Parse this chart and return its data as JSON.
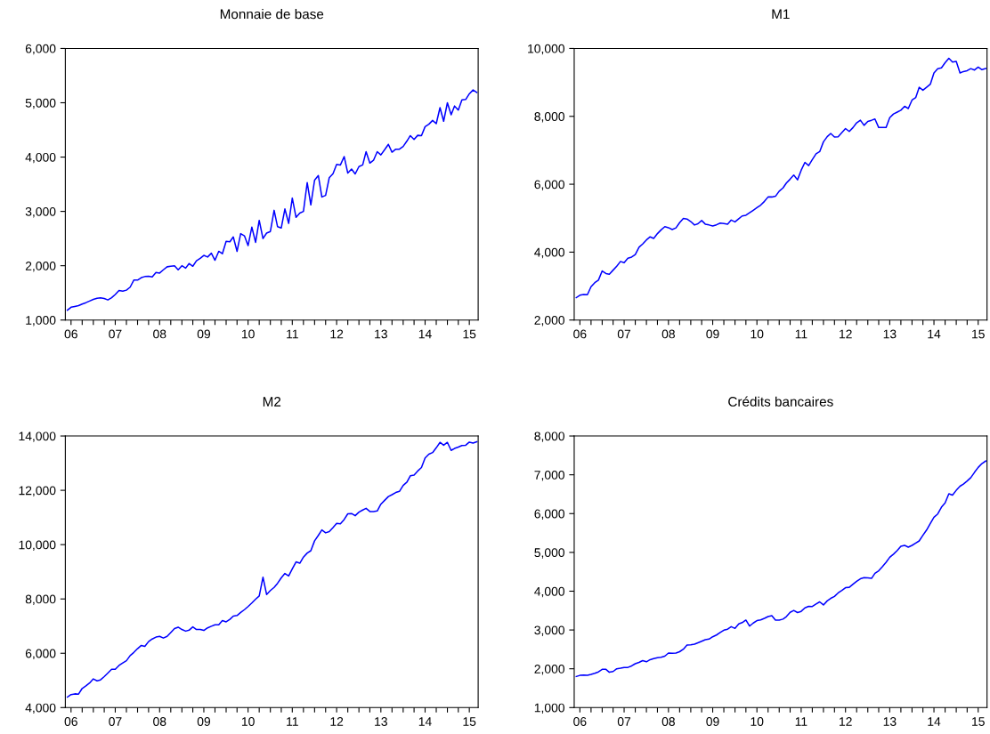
{
  "chart_data": [
    {
      "type": "line",
      "title": "Monnaie de base",
      "x": [
        "2006-06",
        "2006-07",
        "2006-08",
        "2006-09",
        "2006-10",
        "2006-11",
        "2006-12",
        "2007-01",
        "2007-02",
        "2007-03",
        "2007-04",
        "2007-05",
        "2007-06",
        "2007-07",
        "2007-08",
        "2007-09",
        "2007-10",
        "2007-11",
        "2007-12",
        "2008-01",
        "2008-02",
        "2008-03",
        "2008-04",
        "2008-05",
        "2008-06",
        "2008-07",
        "2008-08",
        "2008-09",
        "2008-10",
        "2008-11",
        "2008-12",
        "2009-01",
        "2009-02",
        "2009-03",
        "2009-04",
        "2009-05",
        "2009-06",
        "2009-07",
        "2009-08",
        "2009-09",
        "2009-10",
        "2009-11",
        "2009-12",
        "2010-01",
        "2010-02",
        "2010-03",
        "2010-04",
        "2010-05",
        "2010-06",
        "2010-07",
        "2010-08",
        "2010-09",
        "2010-10",
        "2010-11",
        "2010-12",
        "2011-01",
        "2011-02",
        "2011-03",
        "2011-04",
        "2011-05",
        "2011-06",
        "2011-07",
        "2011-08",
        "2011-09",
        "2011-10",
        "2011-11",
        "2011-12",
        "2012-01",
        "2012-02",
        "2012-03",
        "2012-04",
        "2012-05",
        "2012-06",
        "2012-07",
        "2012-08",
        "2012-09",
        "2012-10",
        "2012-11",
        "2012-12",
        "2013-01",
        "2013-02",
        "2013-03",
        "2013-04",
        "2013-05",
        "2013-06",
        "2013-07",
        "2013-08",
        "2013-09",
        "2013-10",
        "2013-11",
        "2013-12",
        "2014-01",
        "2014-02",
        "2014-03",
        "2014-04",
        "2014-05",
        "2014-06",
        "2014-07",
        "2014-08",
        "2014-09",
        "2014-10",
        "2014-11",
        "2014-12",
        "2015-01",
        "2015-02",
        "2015-03",
        "2015-04",
        "2015-05",
        "2015-06",
        "2015-07",
        "2015-08",
        "2015-09"
      ],
      "series": [
        {
          "color": "#0000ff",
          "values": [
            1180,
            1235,
            1250,
            1265,
            1295,
            1320,
            1350,
            1380,
            1400,
            1410,
            1395,
            1370,
            1410,
            1470,
            1545,
            1530,
            1550,
            1605,
            1735,
            1735,
            1780,
            1800,
            1805,
            1795,
            1875,
            1865,
            1925,
            1980,
            1990,
            2000,
            1925,
            2000,
            1955,
            2040,
            1990,
            2090,
            2135,
            2190,
            2160,
            2230,
            2100,
            2265,
            2220,
            2450,
            2440,
            2530,
            2265,
            2590,
            2550,
            2370,
            2710,
            2430,
            2835,
            2500,
            2600,
            2630,
            3020,
            2720,
            2695,
            3045,
            2780,
            3245,
            2890,
            2970,
            3000,
            3530,
            3120,
            3575,
            3660,
            3265,
            3295,
            3620,
            3695,
            3865,
            3855,
            4010,
            3705,
            3780,
            3690,
            3825,
            3855,
            4100,
            3890,
            3940,
            4100,
            4040,
            4135,
            4235,
            4090,
            4145,
            4145,
            4195,
            4295,
            4395,
            4325,
            4400,
            4395,
            4560,
            4605,
            4675,
            4615,
            4910,
            4660,
            5000,
            4780,
            4940,
            4865,
            5055,
            5060,
            5165,
            5235,
            5190
          ]
        }
      ],
      "xlim": [
        "2006-05-15",
        "2015-09-12"
      ],
      "xticks": [
        {
          "value": "2006-07",
          "label": "06"
        },
        {
          "value": "2006-10",
          "label": null
        },
        {
          "value": "2007-01",
          "label": null
        },
        {
          "value": "2007-04",
          "label": null
        },
        {
          "value": "2007-07",
          "label": "07"
        },
        {
          "value": "2007-10",
          "label": null
        },
        {
          "value": "2008-01",
          "label": null
        },
        {
          "value": "2008-04",
          "label": null
        },
        {
          "value": "2008-07",
          "label": "08"
        },
        {
          "value": "2008-10",
          "label": null
        },
        {
          "value": "2009-01",
          "label": null
        },
        {
          "value": "2009-04",
          "label": null
        },
        {
          "value": "2009-07",
          "label": "09"
        },
        {
          "value": "2009-10",
          "label": null
        },
        {
          "value": "2010-01",
          "label": null
        },
        {
          "value": "2010-04",
          "label": null
        },
        {
          "value": "2010-07",
          "label": "10"
        },
        {
          "value": "2010-10",
          "label": null
        },
        {
          "value": "2011-01",
          "label": null
        },
        {
          "value": "2011-04",
          "label": null
        },
        {
          "value": "2011-07",
          "label": "11"
        },
        {
          "value": "2011-10",
          "label": null
        },
        {
          "value": "2012-01",
          "label": null
        },
        {
          "value": "2012-04",
          "label": null
        },
        {
          "value": "2012-07",
          "label": "12"
        },
        {
          "value": "2012-10",
          "label": null
        },
        {
          "value": "2013-01",
          "label": null
        },
        {
          "value": "2013-04",
          "label": null
        },
        {
          "value": "2013-07",
          "label": "13"
        },
        {
          "value": "2013-10",
          "label": null
        },
        {
          "value": "2014-01",
          "label": null
        },
        {
          "value": "2014-04",
          "label": null
        },
        {
          "value": "2014-07",
          "label": "14"
        },
        {
          "value": "2014-10",
          "label": null
        },
        {
          "value": "2015-01",
          "label": null
        },
        {
          "value": "2015-04",
          "label": null
        },
        {
          "value": "2015-07",
          "label": "15"
        }
      ],
      "ylim": [
        1000,
        6000
      ],
      "yticks": [
        {
          "value": 1000,
          "label": "1,000"
        },
        {
          "value": 2000,
          "label": "2,000"
        },
        {
          "value": 3000,
          "label": "3,000"
        },
        {
          "value": 4000,
          "label": "4,000"
        },
        {
          "value": 5000,
          "label": "5,000"
        },
        {
          "value": 6000,
          "label": "6,000"
        }
      ]
    },
    {
      "type": "line",
      "title": "M1",
      "x": [
        "2006-06",
        "2006-07",
        "2006-08",
        "2006-09",
        "2006-10",
        "2006-11",
        "2006-12",
        "2007-01",
        "2007-02",
        "2007-03",
        "2007-04",
        "2007-05",
        "2007-06",
        "2007-07",
        "2007-08",
        "2007-09",
        "2007-10",
        "2007-11",
        "2007-12",
        "2008-01",
        "2008-02",
        "2008-03",
        "2008-04",
        "2008-05",
        "2008-06",
        "2008-07",
        "2008-08",
        "2008-09",
        "2008-10",
        "2008-11",
        "2008-12",
        "2009-01",
        "2009-02",
        "2009-03",
        "2009-04",
        "2009-05",
        "2009-06",
        "2009-07",
        "2009-08",
        "2009-09",
        "2009-10",
        "2009-11",
        "2009-12",
        "2010-01",
        "2010-02",
        "2010-03",
        "2010-04",
        "2010-05",
        "2010-06",
        "2010-07",
        "2010-08",
        "2010-09",
        "2010-10",
        "2010-11",
        "2010-12",
        "2011-01",
        "2011-02",
        "2011-03",
        "2011-04",
        "2011-05",
        "2011-06",
        "2011-07",
        "2011-08",
        "2011-09",
        "2011-10",
        "2011-11",
        "2011-12",
        "2012-01",
        "2012-02",
        "2012-03",
        "2012-04",
        "2012-05",
        "2012-06",
        "2012-07",
        "2012-08",
        "2012-09",
        "2012-10",
        "2012-11",
        "2012-12",
        "2013-01",
        "2013-02",
        "2013-03",
        "2013-04",
        "2013-05",
        "2013-06",
        "2013-07",
        "2013-08",
        "2013-09",
        "2013-10",
        "2013-11",
        "2013-12",
        "2014-01",
        "2014-02",
        "2014-03",
        "2014-04",
        "2014-05",
        "2014-06",
        "2014-07",
        "2014-08",
        "2014-09",
        "2014-10",
        "2014-11",
        "2014-12",
        "2015-01",
        "2015-02",
        "2015-03",
        "2015-04",
        "2015-05",
        "2015-06",
        "2015-07",
        "2015-08",
        "2015-09"
      ],
      "series": [
        {
          "color": "#0000ff",
          "values": [
            2660,
            2730,
            2755,
            2745,
            2980,
            3100,
            3175,
            3445,
            3370,
            3350,
            3470,
            3585,
            3725,
            3690,
            3820,
            3855,
            3930,
            4145,
            4240,
            4360,
            4450,
            4405,
            4545,
            4655,
            4750,
            4720,
            4665,
            4715,
            4870,
            4995,
            4975,
            4900,
            4800,
            4835,
            4930,
            4825,
            4800,
            4770,
            4805,
            4855,
            4845,
            4825,
            4945,
            4890,
            4985,
            5065,
            5085,
            5160,
            5235,
            5310,
            5385,
            5495,
            5625,
            5625,
            5645,
            5795,
            5890,
            6035,
            6150,
            6270,
            6130,
            6410,
            6645,
            6550,
            6725,
            6895,
            6960,
            7250,
            7400,
            7495,
            7390,
            7400,
            7520,
            7640,
            7555,
            7670,
            7810,
            7885,
            7735,
            7850,
            7885,
            7920,
            7670,
            7670,
            7670,
            7960,
            8070,
            8125,
            8180,
            8295,
            8230,
            8480,
            8555,
            8855,
            8770,
            8855,
            8945,
            9280,
            9405,
            9430,
            9580,
            9710,
            9600,
            9620,
            9280,
            9320,
            9345,
            9405,
            9365,
            9450,
            9375,
            9410
          ]
        }
      ],
      "xlim": [
        "2006-05-15",
        "2015-09-12"
      ],
      "xticks": [
        {
          "value": "2006-07",
          "label": "06"
        },
        {
          "value": "2006-10",
          "label": null
        },
        {
          "value": "2007-01",
          "label": null
        },
        {
          "value": "2007-04",
          "label": null
        },
        {
          "value": "2007-07",
          "label": "07"
        },
        {
          "value": "2007-10",
          "label": null
        },
        {
          "value": "2008-01",
          "label": null
        },
        {
          "value": "2008-04",
          "label": null
        },
        {
          "value": "2008-07",
          "label": "08"
        },
        {
          "value": "2008-10",
          "label": null
        },
        {
          "value": "2009-01",
          "label": null
        },
        {
          "value": "2009-04",
          "label": null
        },
        {
          "value": "2009-07",
          "label": "09"
        },
        {
          "value": "2009-10",
          "label": null
        },
        {
          "value": "2010-01",
          "label": null
        },
        {
          "value": "2010-04",
          "label": null
        },
        {
          "value": "2010-07",
          "label": "10"
        },
        {
          "value": "2010-10",
          "label": null
        },
        {
          "value": "2011-01",
          "label": null
        },
        {
          "value": "2011-04",
          "label": null
        },
        {
          "value": "2011-07",
          "label": "11"
        },
        {
          "value": "2011-10",
          "label": null
        },
        {
          "value": "2012-01",
          "label": null
        },
        {
          "value": "2012-04",
          "label": null
        },
        {
          "value": "2012-07",
          "label": "12"
        },
        {
          "value": "2012-10",
          "label": null
        },
        {
          "value": "2013-01",
          "label": null
        },
        {
          "value": "2013-04",
          "label": null
        },
        {
          "value": "2013-07",
          "label": "13"
        },
        {
          "value": "2013-10",
          "label": null
        },
        {
          "value": "2014-01",
          "label": null
        },
        {
          "value": "2014-04",
          "label": null
        },
        {
          "value": "2014-07",
          "label": "14"
        },
        {
          "value": "2014-10",
          "label": null
        },
        {
          "value": "2015-01",
          "label": null
        },
        {
          "value": "2015-04",
          "label": null
        },
        {
          "value": "2015-07",
          "label": "15"
        }
      ],
      "ylim": [
        2000,
        10000
      ],
      "yticks": [
        {
          "value": 2000,
          "label": "2,000"
        },
        {
          "value": 4000,
          "label": "4,000"
        },
        {
          "value": 6000,
          "label": "6,000"
        },
        {
          "value": 8000,
          "label": "8,000"
        },
        {
          "value": 10000,
          "label": "10,000"
        }
      ]
    },
    {
      "type": "line",
      "title": "M2",
      "x": [
        "2006-06",
        "2006-07",
        "2006-08",
        "2006-09",
        "2006-10",
        "2006-11",
        "2006-12",
        "2007-01",
        "2007-02",
        "2007-03",
        "2007-04",
        "2007-05",
        "2007-06",
        "2007-07",
        "2007-08",
        "2007-09",
        "2007-10",
        "2007-11",
        "2007-12",
        "2008-01",
        "2008-02",
        "2008-03",
        "2008-04",
        "2008-05",
        "2008-06",
        "2008-07",
        "2008-08",
        "2008-09",
        "2008-10",
        "2008-11",
        "2008-12",
        "2009-01",
        "2009-02",
        "2009-03",
        "2009-04",
        "2009-05",
        "2009-06",
        "2009-07",
        "2009-08",
        "2009-09",
        "2009-10",
        "2009-11",
        "2009-12",
        "2010-01",
        "2010-02",
        "2010-03",
        "2010-04",
        "2010-05",
        "2010-06",
        "2010-07",
        "2010-08",
        "2010-09",
        "2010-10",
        "2010-11",
        "2010-12",
        "2011-01",
        "2011-02",
        "2011-03",
        "2011-04",
        "2011-05",
        "2011-06",
        "2011-07",
        "2011-08",
        "2011-09",
        "2011-10",
        "2011-11",
        "2011-12",
        "2012-01",
        "2012-02",
        "2012-03",
        "2012-04",
        "2012-05",
        "2012-06",
        "2012-07",
        "2012-08",
        "2012-09",
        "2012-10",
        "2012-11",
        "2012-12",
        "2013-01",
        "2013-02",
        "2013-03",
        "2013-04",
        "2013-05",
        "2013-06",
        "2013-07",
        "2013-08",
        "2013-09",
        "2013-10",
        "2013-11",
        "2013-12",
        "2014-01",
        "2014-02",
        "2014-03",
        "2014-04",
        "2014-05",
        "2014-06",
        "2014-07",
        "2014-08",
        "2014-09",
        "2014-10",
        "2014-11",
        "2014-12",
        "2015-01",
        "2015-02",
        "2015-03",
        "2015-04",
        "2015-05",
        "2015-06",
        "2015-07",
        "2015-08",
        "2015-09"
      ],
      "series": [
        {
          "color": "#0000ff",
          "values": [
            4385,
            4480,
            4505,
            4495,
            4705,
            4800,
            4905,
            5055,
            4985,
            5020,
            5140,
            5270,
            5410,
            5410,
            5550,
            5645,
            5725,
            5915,
            6030,
            6170,
            6290,
            6255,
            6430,
            6525,
            6595,
            6620,
            6560,
            6620,
            6760,
            6910,
            6960,
            6875,
            6815,
            6850,
            6970,
            6875,
            6875,
            6840,
            6935,
            6995,
            7050,
            7050,
            7205,
            7155,
            7250,
            7370,
            7390,
            7500,
            7605,
            7720,
            7850,
            7990,
            8110,
            8800,
            8165,
            8310,
            8425,
            8575,
            8775,
            8940,
            8845,
            9105,
            9365,
            9315,
            9540,
            9690,
            9775,
            10140,
            10340,
            10540,
            10435,
            10480,
            10630,
            10785,
            10770,
            10925,
            11135,
            11145,
            11065,
            11195,
            11275,
            11335,
            11220,
            11220,
            11240,
            11490,
            11630,
            11770,
            11840,
            11920,
            11960,
            12180,
            12300,
            12535,
            12560,
            12710,
            12840,
            13190,
            13330,
            13390,
            13565,
            13765,
            13660,
            13765,
            13470,
            13540,
            13590,
            13650,
            13660,
            13775,
            13740,
            13790
          ]
        }
      ],
      "xlim": [
        "2006-05-15",
        "2015-09-12"
      ],
      "xticks": [
        {
          "value": "2006-07",
          "label": "06"
        },
        {
          "value": "2006-10",
          "label": null
        },
        {
          "value": "2007-01",
          "label": null
        },
        {
          "value": "2007-04",
          "label": null
        },
        {
          "value": "2007-07",
          "label": "07"
        },
        {
          "value": "2007-10",
          "label": null
        },
        {
          "value": "2008-01",
          "label": null
        },
        {
          "value": "2008-04",
          "label": null
        },
        {
          "value": "2008-07",
          "label": "08"
        },
        {
          "value": "2008-10",
          "label": null
        },
        {
          "value": "2009-01",
          "label": null
        },
        {
          "value": "2009-04",
          "label": null
        },
        {
          "value": "2009-07",
          "label": "09"
        },
        {
          "value": "2009-10",
          "label": null
        },
        {
          "value": "2010-01",
          "label": null
        },
        {
          "value": "2010-04",
          "label": null
        },
        {
          "value": "2010-07",
          "label": "10"
        },
        {
          "value": "2010-10",
          "label": null
        },
        {
          "value": "2011-01",
          "label": null
        },
        {
          "value": "2011-04",
          "label": null
        },
        {
          "value": "2011-07",
          "label": "11"
        },
        {
          "value": "2011-10",
          "label": null
        },
        {
          "value": "2012-01",
          "label": null
        },
        {
          "value": "2012-04",
          "label": null
        },
        {
          "value": "2012-07",
          "label": "12"
        },
        {
          "value": "2012-10",
          "label": null
        },
        {
          "value": "2013-01",
          "label": null
        },
        {
          "value": "2013-04",
          "label": null
        },
        {
          "value": "2013-07",
          "label": "13"
        },
        {
          "value": "2013-10",
          "label": null
        },
        {
          "value": "2014-01",
          "label": null
        },
        {
          "value": "2014-04",
          "label": null
        },
        {
          "value": "2014-07",
          "label": "14"
        },
        {
          "value": "2014-10",
          "label": null
        },
        {
          "value": "2015-01",
          "label": null
        },
        {
          "value": "2015-04",
          "label": null
        },
        {
          "value": "2015-07",
          "label": "15"
        }
      ],
      "ylim": [
        4000,
        14000
      ],
      "yticks": [
        {
          "value": 4000,
          "label": "4,000"
        },
        {
          "value": 6000,
          "label": "6,000"
        },
        {
          "value": 8000,
          "label": "8,000"
        },
        {
          "value": 10000,
          "label": "10,000"
        },
        {
          "value": 12000,
          "label": "12,000"
        },
        {
          "value": 14000,
          "label": "14,000"
        }
      ]
    },
    {
      "type": "line",
      "title": "Crédits bancaires",
      "x": [
        "2006-06",
        "2006-07",
        "2006-08",
        "2006-09",
        "2006-10",
        "2006-11",
        "2006-12",
        "2007-01",
        "2007-02",
        "2007-03",
        "2007-04",
        "2007-05",
        "2007-06",
        "2007-07",
        "2007-08",
        "2007-09",
        "2007-10",
        "2007-11",
        "2007-12",
        "2008-01",
        "2008-02",
        "2008-03",
        "2008-04",
        "2008-05",
        "2008-06",
        "2008-07",
        "2008-08",
        "2008-09",
        "2008-10",
        "2008-11",
        "2008-12",
        "2009-01",
        "2009-02",
        "2009-03",
        "2009-04",
        "2009-05",
        "2009-06",
        "2009-07",
        "2009-08",
        "2009-09",
        "2009-10",
        "2009-11",
        "2009-12",
        "2010-01",
        "2010-02",
        "2010-03",
        "2010-04",
        "2010-05",
        "2010-06",
        "2010-07",
        "2010-08",
        "2010-09",
        "2010-10",
        "2010-11",
        "2010-12",
        "2011-01",
        "2011-02",
        "2011-03",
        "2011-04",
        "2011-05",
        "2011-06",
        "2011-07",
        "2011-08",
        "2011-09",
        "2011-10",
        "2011-11",
        "2011-12",
        "2012-01",
        "2012-02",
        "2012-03",
        "2012-04",
        "2012-05",
        "2012-06",
        "2012-07",
        "2012-08",
        "2012-09",
        "2012-10",
        "2012-11",
        "2012-12",
        "2013-01",
        "2013-02",
        "2013-03",
        "2013-04",
        "2013-05",
        "2013-06",
        "2013-07",
        "2013-08",
        "2013-09",
        "2013-10",
        "2013-11",
        "2013-12",
        "2014-01",
        "2014-02",
        "2014-03",
        "2014-04",
        "2014-05",
        "2014-06",
        "2014-07",
        "2014-08",
        "2014-09",
        "2014-10",
        "2014-11",
        "2014-12",
        "2015-01",
        "2015-02",
        "2015-03",
        "2015-04",
        "2015-05",
        "2015-06",
        "2015-07",
        "2015-08",
        "2015-09"
      ],
      "series": [
        {
          "color": "#0000ff",
          "values": [
            1800,
            1830,
            1840,
            1830,
            1855,
            1885,
            1920,
            1985,
            1985,
            1910,
            1930,
            2000,
            2015,
            2035,
            2035,
            2075,
            2130,
            2165,
            2210,
            2180,
            2235,
            2260,
            2285,
            2295,
            2325,
            2405,
            2400,
            2405,
            2440,
            2505,
            2610,
            2620,
            2635,
            2670,
            2710,
            2750,
            2765,
            2825,
            2870,
            2935,
            2995,
            3020,
            3085,
            3040,
            3155,
            3190,
            3255,
            3100,
            3180,
            3240,
            3260,
            3300,
            3345,
            3370,
            3255,
            3255,
            3280,
            3345,
            3455,
            3505,
            3450,
            3480,
            3570,
            3610,
            3605,
            3670,
            3725,
            3645,
            3750,
            3815,
            3865,
            3955,
            4020,
            4090,
            4100,
            4180,
            4255,
            4320,
            4350,
            4345,
            4330,
            4460,
            4525,
            4630,
            4745,
            4875,
            4955,
            5050,
            5160,
            5180,
            5135,
            5180,
            5240,
            5295,
            5440,
            5575,
            5745,
            5905,
            5990,
            6165,
            6275,
            6510,
            6475,
            6600,
            6705,
            6760,
            6840,
            6925,
            7065,
            7190,
            7290,
            7355
          ]
        }
      ],
      "xlim": [
        "2006-05-15",
        "2015-09-12"
      ],
      "xticks": [
        {
          "value": "2006-07",
          "label": "06"
        },
        {
          "value": "2006-10",
          "label": null
        },
        {
          "value": "2007-01",
          "label": null
        },
        {
          "value": "2007-04",
          "label": null
        },
        {
          "value": "2007-07",
          "label": "07"
        },
        {
          "value": "2007-10",
          "label": null
        },
        {
          "value": "2008-01",
          "label": null
        },
        {
          "value": "2008-04",
          "label": null
        },
        {
          "value": "2008-07",
          "label": "08"
        },
        {
          "value": "2008-10",
          "label": null
        },
        {
          "value": "2009-01",
          "label": null
        },
        {
          "value": "2009-04",
          "label": null
        },
        {
          "value": "2009-07",
          "label": "09"
        },
        {
          "value": "2009-10",
          "label": null
        },
        {
          "value": "2010-01",
          "label": null
        },
        {
          "value": "2010-04",
          "label": null
        },
        {
          "value": "2010-07",
          "label": "10"
        },
        {
          "value": "2010-10",
          "label": null
        },
        {
          "value": "2011-01",
          "label": null
        },
        {
          "value": "2011-04",
          "label": null
        },
        {
          "value": "2011-07",
          "label": "11"
        },
        {
          "value": "2011-10",
          "label": null
        },
        {
          "value": "2012-01",
          "label": null
        },
        {
          "value": "2012-04",
          "label": null
        },
        {
          "value": "2012-07",
          "label": "12"
        },
        {
          "value": "2012-10",
          "label": null
        },
        {
          "value": "2013-01",
          "label": null
        },
        {
          "value": "2013-04",
          "label": null
        },
        {
          "value": "2013-07",
          "label": "13"
        },
        {
          "value": "2013-10",
          "label": null
        },
        {
          "value": "2014-01",
          "label": null
        },
        {
          "value": "2014-04",
          "label": null
        },
        {
          "value": "2014-07",
          "label": "14"
        },
        {
          "value": "2014-10",
          "label": null
        },
        {
          "value": "2015-01",
          "label": null
        },
        {
          "value": "2015-04",
          "label": null
        },
        {
          "value": "2015-07",
          "label": "15"
        }
      ],
      "ylim": [
        1000,
        8000
      ],
      "yticks": [
        {
          "value": 1000,
          "label": "1,000"
        },
        {
          "value": 2000,
          "label": "2,000"
        },
        {
          "value": 3000,
          "label": "3,000"
        },
        {
          "value": 4000,
          "label": "4,000"
        },
        {
          "value": 5000,
          "label": "5,000"
        },
        {
          "value": 6000,
          "label": "6,000"
        },
        {
          "value": 7000,
          "label": "7,000"
        },
        {
          "value": 8000,
          "label": "8,000"
        }
      ]
    }
  ]
}
